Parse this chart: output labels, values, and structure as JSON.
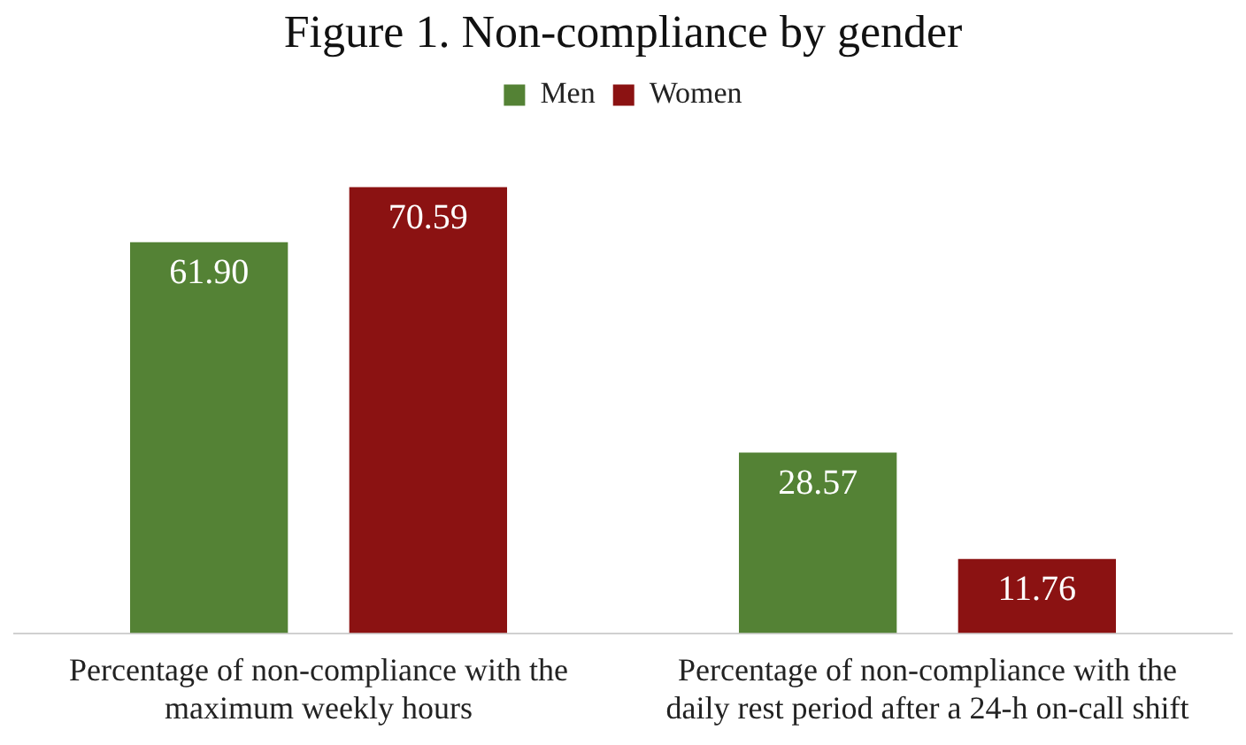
{
  "chart_data": {
    "type": "bar",
    "title": "Figure 1. Non-compliance by gender",
    "tick_labels": "x",
    "legend": "top",
    "categories": [
      "Percentage of non-compliance with the maximum weekly hours",
      "Percentage of non-compliance with the daily rest period after a 24-h on-call shift"
    ],
    "series": [
      {
        "name": "Men",
        "color": "#548235",
        "values": [
          61.9,
          28.57
        ],
        "value_labels": [
          "61.90",
          "28.57"
        ]
      },
      {
        "name": "Women",
        "color": "#8b1212",
        "values": [
          70.59,
          11.76
        ],
        "value_labels": [
          "70.59",
          "11.76"
        ]
      }
    ]
  }
}
